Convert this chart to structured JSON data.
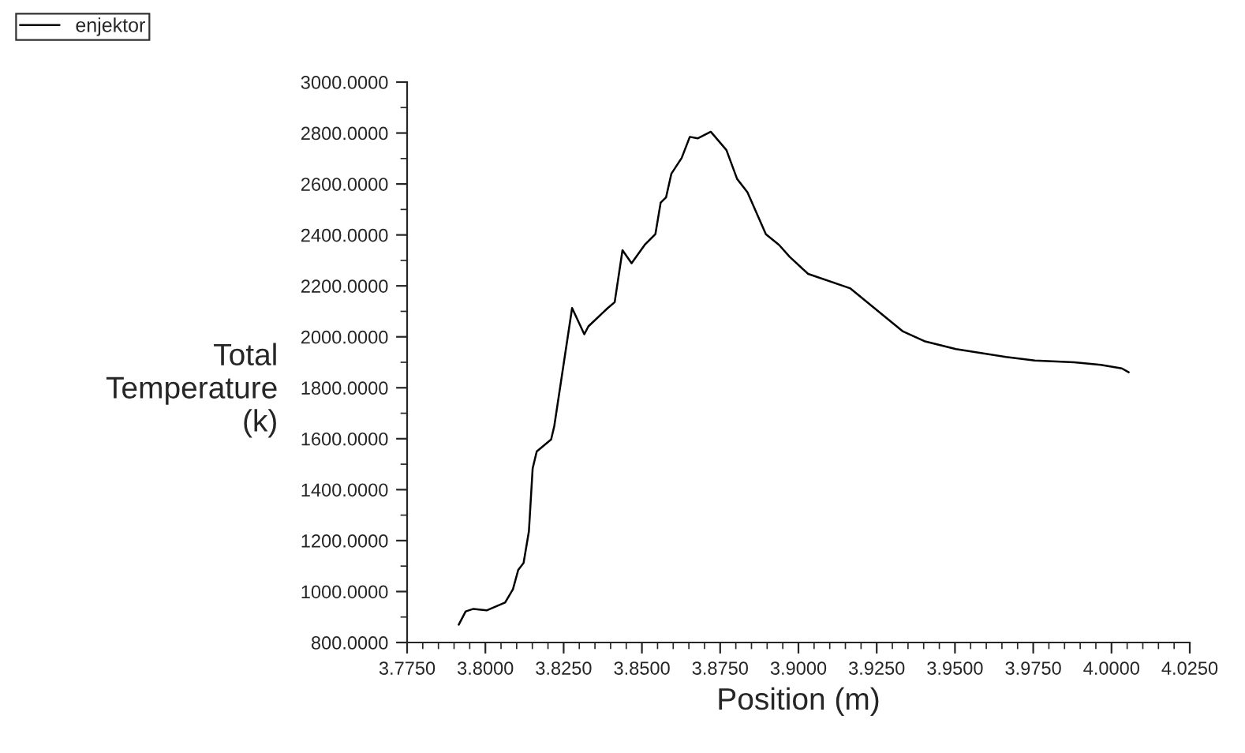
{
  "chart_data": {
    "type": "line",
    "xlabel": "Position (m)",
    "ylabel": "Total\nTemperature\n(k)",
    "legend": "top left",
    "grid": false,
    "marker": "none",
    "line_style": "solid",
    "xlim": [
      3.775,
      4.025
    ],
    "xticks": [
      {
        "value": 3.775,
        "label": "3.7750"
      },
      {
        "value": 3.8,
        "label": "3.8000"
      },
      {
        "value": 3.825,
        "label": "3.8250"
      },
      {
        "value": 3.85,
        "label": "3.8500"
      },
      {
        "value": 3.875,
        "label": "3.8750"
      },
      {
        "value": 3.9,
        "label": "3.9000"
      },
      {
        "value": 3.925,
        "label": "3.9250"
      },
      {
        "value": 3.95,
        "label": "3.9500"
      },
      {
        "value": 3.975,
        "label": "3.9750"
      },
      {
        "value": 4.0,
        "label": "4.0000"
      },
      {
        "value": 4.025,
        "label": "4.0250"
      }
    ],
    "ylim": [
      800,
      3000
    ],
    "yticks": [
      {
        "value": 800,
        "label": "800.0000"
      },
      {
        "value": 1000,
        "label": "1000.0000"
      },
      {
        "value": 1200,
        "label": "1200.0000"
      },
      {
        "value": 1400,
        "label": "1400.0000"
      },
      {
        "value": 1600,
        "label": "1600.0000"
      },
      {
        "value": 1800,
        "label": "1800.0000"
      },
      {
        "value": 2000,
        "label": "2000.0000"
      },
      {
        "value": 2200,
        "label": "2200.0000"
      },
      {
        "value": 2400,
        "label": "2400.0000"
      },
      {
        "value": 2600,
        "label": "2600.0000"
      },
      {
        "value": 2800,
        "label": "2800.0000"
      },
      {
        "value": 3000,
        "label": "3000.0000"
      }
    ],
    "series": [
      {
        "name": "enjektor",
        "color": "#000000",
        "x": [
          3.7915,
          3.7937,
          3.7962,
          3.8004,
          3.8063,
          3.8088,
          3.8105,
          3.8122,
          3.8139,
          3.8151,
          3.8164,
          3.821,
          3.822,
          3.8277,
          3.8316,
          3.8329,
          3.8391,
          3.8413,
          3.8438,
          3.8467,
          3.8509,
          3.8543,
          3.856,
          3.8577,
          3.8594,
          3.8627,
          3.8653,
          3.8678,
          3.872,
          3.877,
          3.8804,
          3.8837,
          3.8896,
          3.8938,
          3.8972,
          3.9031,
          3.9166,
          3.9334,
          3.9402,
          3.9503,
          3.9663,
          3.9755,
          3.9881,
          3.9966,
          4.0033,
          4.0055
        ],
        "values": [
          870,
          922,
          932,
          926,
          957,
          1009,
          1085,
          1112,
          1236,
          1483,
          1550,
          1597,
          1649,
          2113,
          2010,
          2041,
          2113,
          2136,
          2340,
          2289,
          2361,
          2403,
          2527,
          2547,
          2640,
          2702,
          2785,
          2779,
          2805,
          2733,
          2620,
          2568,
          2403,
          2361,
          2314,
          2247,
          2190,
          2021,
          1983,
          1952,
          1921,
          1907,
          1900,
          1890,
          1876,
          1861
        ]
      }
    ]
  }
}
